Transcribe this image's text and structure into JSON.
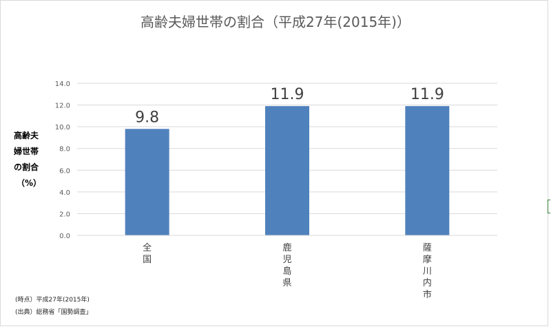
{
  "chart_data": {
    "type": "bar",
    "title": "高齢夫婦世帯の割合（平成27年(2015年)）",
    "ylabel": "高齢夫婦世帯の割合（%）",
    "ylabel_lines": [
      "高齢夫",
      "婦世帯",
      "の割合",
      "（%）"
    ],
    "xlabel": "",
    "categories": [
      "全国",
      "鹿児島県",
      "薩摩川内市"
    ],
    "values": [
      9.8,
      11.9,
      11.9
    ],
    "data_labels": [
      "9.8",
      "11.9",
      "11.9"
    ],
    "ylim": [
      0,
      14
    ],
    "yticks": [
      "0.0",
      "2.0",
      "4.0",
      "6.0",
      "8.0",
      "10.0",
      "12.0",
      "14.0"
    ],
    "grid": true,
    "legend": "none",
    "bar_color": "#4f81bd"
  },
  "notes": {
    "time": "(時点）平成27年(2015年)",
    "source": "(出典）総務省「国勢調査」"
  },
  "colors": {
    "grid": "#d9d9d9",
    "bar": "#4f81bd"
  }
}
